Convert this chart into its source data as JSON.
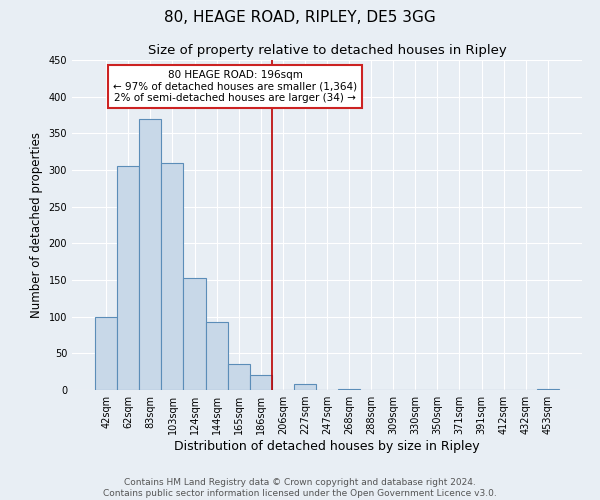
{
  "title": "80, HEAGE ROAD, RIPLEY, DE5 3GG",
  "subtitle": "Size of property relative to detached houses in Ripley",
  "xlabel": "Distribution of detached houses by size in Ripley",
  "ylabel": "Number of detached properties",
  "bin_labels": [
    "42sqm",
    "62sqm",
    "83sqm",
    "103sqm",
    "124sqm",
    "144sqm",
    "165sqm",
    "186sqm",
    "206sqm",
    "227sqm",
    "247sqm",
    "268sqm",
    "288sqm",
    "309sqm",
    "330sqm",
    "350sqm",
    "371sqm",
    "391sqm",
    "412sqm",
    "432sqm",
    "453sqm"
  ],
  "bar_values": [
    100,
    305,
    370,
    310,
    153,
    93,
    35,
    20,
    0,
    8,
    0,
    2,
    0,
    0,
    0,
    0,
    0,
    0,
    0,
    0,
    2
  ],
  "bar_color": "#c8d8e8",
  "bar_edge_color": "#5b8db8",
  "bg_color": "#e8eef4",
  "grid_color": "#ffffff",
  "vline_x_index": 7.5,
  "vline_color": "#bb0000",
  "annotation_line1": "80 HEAGE ROAD: 196sqm",
  "annotation_line2": "← 97% of detached houses are smaller (1,364)",
  "annotation_line3": "2% of semi-detached houses are larger (34) →",
  "annotation_box_color": "#cc2222",
  "ylim": [
    0,
    450
  ],
  "yticks": [
    0,
    50,
    100,
    150,
    200,
    250,
    300,
    350,
    400,
    450
  ],
  "footnote": "Contains HM Land Registry data © Crown copyright and database right 2024.\nContains public sector information licensed under the Open Government Licence v3.0.",
  "title_fontsize": 11,
  "subtitle_fontsize": 9.5,
  "ylabel_fontsize": 8.5,
  "xlabel_fontsize": 9,
  "tick_fontsize": 7,
  "footnote_fontsize": 6.5,
  "annot_fontsize": 7.5
}
